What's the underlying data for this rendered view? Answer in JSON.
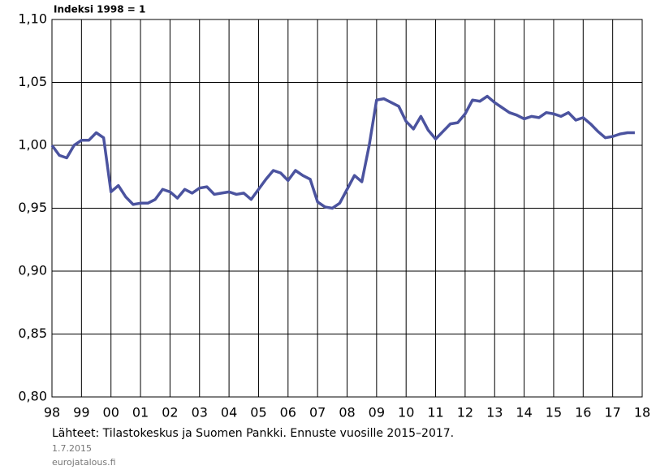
{
  "chart_data": {
    "type": "line",
    "title": "Indeksi 1998 = 1",
    "source": "Lähteet: Tilastokeskus ja Suomen Pankki. Ennuste vuosille 2015–2017.",
    "date": "1.7.2015",
    "site": "eurojatalous.fi",
    "color": "#4b539f",
    "grid": true,
    "xlim": [
      1998,
      2018
    ],
    "ylim": [
      0.8,
      1.1
    ],
    "yticks": [
      {
        "value": 0.8,
        "label": "0,80"
      },
      {
        "value": 0.85,
        "label": "0,85"
      },
      {
        "value": 0.9,
        "label": "0,90"
      },
      {
        "value": 0.95,
        "label": "0,95"
      },
      {
        "value": 1.0,
        "label": "1,00"
      },
      {
        "value": 1.05,
        "label": "1,05"
      },
      {
        "value": 1.1,
        "label": "1,10"
      }
    ],
    "xticks": [
      {
        "value": 1998,
        "label": "98"
      },
      {
        "value": 1999,
        "label": "99"
      },
      {
        "value": 2000,
        "label": "00"
      },
      {
        "value": 2001,
        "label": "01"
      },
      {
        "value": 2002,
        "label": "02"
      },
      {
        "value": 2003,
        "label": "03"
      },
      {
        "value": 2004,
        "label": "04"
      },
      {
        "value": 2005,
        "label": "05"
      },
      {
        "value": 2006,
        "label": "06"
      },
      {
        "value": 2007,
        "label": "07"
      },
      {
        "value": 2008,
        "label": "08"
      },
      {
        "value": 2009,
        "label": "09"
      },
      {
        "value": 2010,
        "label": "10"
      },
      {
        "value": 2011,
        "label": "11"
      },
      {
        "value": 2012,
        "label": "12"
      },
      {
        "value": 2013,
        "label": "13"
      },
      {
        "value": 2014,
        "label": "14"
      },
      {
        "value": 2015,
        "label": "15"
      },
      {
        "value": 2016,
        "label": "16"
      },
      {
        "value": 2017,
        "label": "17"
      },
      {
        "value": 2018,
        "label": "18"
      }
    ],
    "x": [
      1998,
      1998.25,
      1998.5,
      1998.75,
      1999,
      1999.25,
      1999.5,
      1999.75,
      2000,
      2000.25,
      2000.5,
      2000.75,
      2001,
      2001.25,
      2001.5,
      2001.75,
      2002,
      2002.25,
      2002.5,
      2002.75,
      2003,
      2003.25,
      2003.5,
      2003.75,
      2004,
      2004.25,
      2004.5,
      2004.75,
      2005,
      2005.25,
      2005.5,
      2005.75,
      2006,
      2006.25,
      2006.5,
      2006.75,
      2007,
      2007.25,
      2007.5,
      2007.75,
      2008,
      2008.25,
      2008.5,
      2008.75,
      2009,
      2009.25,
      2009.5,
      2009.75,
      2010,
      2010.25,
      2010.5,
      2010.75,
      2011,
      2011.25,
      2011.5,
      2011.75,
      2012,
      2012.25,
      2012.5,
      2012.75,
      2013,
      2013.25,
      2013.5,
      2013.75,
      2014,
      2014.25,
      2014.5,
      2014.75,
      2015,
      2015.25,
      2015.5,
      2015.75,
      2016,
      2016.25,
      2016.5,
      2016.75,
      2017,
      2017.25,
      2017.5,
      2017.75
    ],
    "values": [
      1.0,
      0.992,
      0.99,
      1.0,
      1.004,
      1.004,
      1.01,
      1.006,
      0.963,
      0.968,
      0.959,
      0.953,
      0.954,
      0.954,
      0.957,
      0.965,
      0.963,
      0.958,
      0.965,
      0.962,
      0.966,
      0.967,
      0.961,
      0.962,
      0.963,
      0.961,
      0.962,
      0.957,
      0.965,
      0.973,
      0.98,
      0.978,
      0.972,
      0.98,
      0.976,
      0.973,
      0.955,
      0.951,
      0.95,
      0.954,
      0.965,
      0.976,
      0.971,
      1.0,
      1.036,
      1.037,
      1.034,
      1.031,
      1.019,
      1.013,
      1.023,
      1.012,
      1.005,
      1.011,
      1.017,
      1.018,
      1.025,
      1.036,
      1.035,
      1.039,
      1.034,
      1.03,
      1.026,
      1.024,
      1.021,
      1.023,
      1.022,
      1.026,
      1.025,
      1.023,
      1.026,
      1.02,
      1.022,
      1.017,
      1.011,
      1.006,
      1.007,
      1.009,
      1.01,
      1.01
    ]
  }
}
